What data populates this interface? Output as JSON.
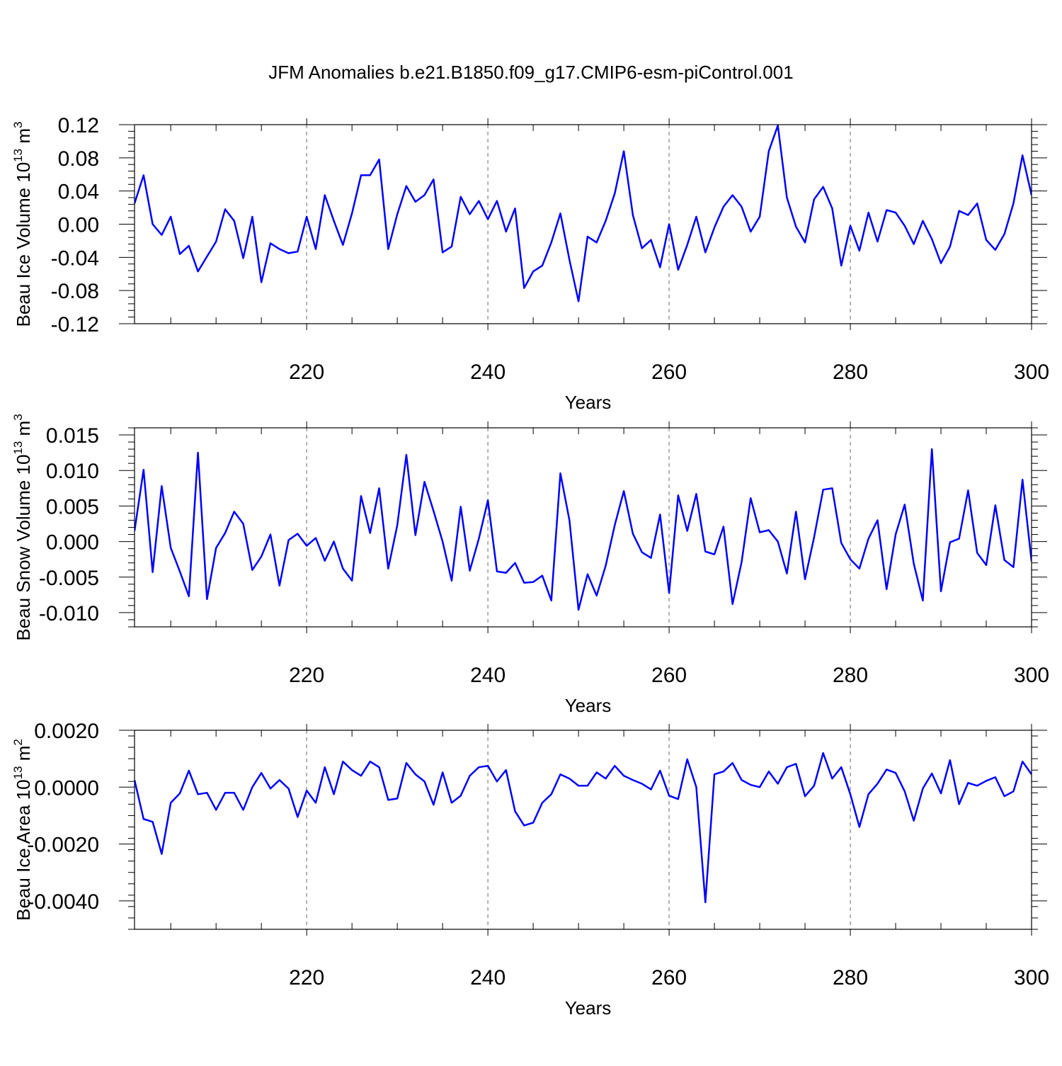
{
  "title": "JFM Anomalies b.e21.B1850.f09_g17.CMIP6-esm-piControl.001",
  "line_color": "#0000ff",
  "chart_data": [
    {
      "type": "line",
      "xlabel": "Years",
      "ylabel": "Beau Ice Volume 10^13 m^3",
      "ylabel_parts": {
        "prefix": "Beau Ice Volume 10",
        "exp1": "13",
        "mid": " m",
        "exp2": "3"
      },
      "xlim": [
        201,
        300
      ],
      "ylim": [
        -0.12,
        0.12
      ],
      "xticks": [
        220,
        240,
        260,
        280,
        300
      ],
      "xtick_labels": [
        "220",
        "240",
        "260",
        "280",
        "300"
      ],
      "yticks": [
        -0.12,
        -0.08,
        -0.04,
        0.0,
        0.04,
        0.08,
        0.12
      ],
      "ytick_labels": [
        "-0.12",
        "-0.08",
        "-0.04",
        "0.00",
        "0.04",
        "0.08",
        "0.12"
      ],
      "grid_x": true,
      "series": [
        {
          "name": "Beau Ice Volume",
          "x_start": 201,
          "values": [
            0.025,
            0.059,
            0.0,
            -0.013,
            0.009,
            -0.036,
            -0.026,
            -0.057,
            -0.039,
            -0.021,
            0.018,
            0.004,
            -0.041,
            0.009,
            -0.07,
            -0.023,
            -0.03,
            -0.035,
            -0.033,
            0.009,
            -0.03,
            0.035,
            0.004,
            -0.025,
            0.013,
            0.059,
            0.059,
            0.078,
            -0.03,
            0.012,
            0.046,
            0.027,
            0.035,
            0.054,
            -0.034,
            -0.027,
            0.033,
            0.012,
            0.028,
            0.006,
            0.028,
            -0.009,
            0.019,
            -0.077,
            -0.057,
            -0.05,
            -0.022,
            0.013,
            -0.043,
            -0.093,
            -0.015,
            -0.022,
            0.004,
            0.037,
            0.088,
            0.011,
            -0.029,
            -0.019,
            -0.052,
            0.0,
            -0.055,
            -0.025,
            0.009,
            -0.034,
            -0.004,
            0.021,
            0.035,
            0.021,
            -0.009,
            0.009,
            0.088,
            0.119,
            0.032,
            -0.003,
            -0.022,
            0.03,
            0.045,
            0.019,
            -0.05,
            -0.002,
            -0.032,
            0.014,
            -0.021,
            0.017,
            0.014,
            -0.002,
            -0.024,
            0.004,
            -0.018,
            -0.047,
            -0.027,
            0.016,
            0.011,
            0.025,
            -0.019,
            -0.031,
            -0.012,
            0.025,
            0.083,
            0.035
          ]
        }
      ]
    },
    {
      "type": "line",
      "xlabel": "Years",
      "ylabel": "Beau Snow Volume 10^13 m^3",
      "ylabel_parts": {
        "prefix": "Beau Snow Volume 10",
        "exp1": "13",
        "mid": " m",
        "exp2": "3"
      },
      "xlim": [
        201,
        300
      ],
      "ylim": [
        -0.012,
        0.016
      ],
      "xticks": [
        220,
        240,
        260,
        280,
        300
      ],
      "xtick_labels": [
        "220",
        "240",
        "260",
        "280",
        "300"
      ],
      "yticks": [
        -0.01,
        -0.005,
        0.0,
        0.005,
        0.01,
        0.015
      ],
      "ytick_labels": [
        "-0.010",
        "-0.005",
        "0.000",
        "0.005",
        "0.010",
        "0.015"
      ],
      "grid_x": true,
      "series": [
        {
          "name": "Beau Snow Volume",
          "x_start": 201,
          "values": [
            0.0015,
            0.0101,
            -0.0043,
            0.0078,
            -0.0009,
            -0.0042,
            -0.0077,
            0.0125,
            -0.0081,
            -0.0009,
            0.0012,
            0.0042,
            0.0025,
            -0.004,
            -0.0021,
            0.001,
            -0.0062,
            0.0002,
            0.0011,
            -0.0006,
            0.0005,
            -0.0027,
            0.0,
            -0.0038,
            -0.0055,
            0.0064,
            0.0012,
            0.0075,
            -0.0038,
            0.0023,
            0.0122,
            0.0009,
            0.0084,
            0.0043,
            0.0,
            -0.0055,
            0.0049,
            -0.0041,
            0.0004,
            0.0058,
            -0.0042,
            -0.0044,
            -0.003,
            -0.0058,
            -0.0057,
            -0.0048,
            -0.0083,
            0.0096,
            0.003,
            -0.0096,
            -0.0046,
            -0.0076,
            -0.0034,
            0.0023,
            0.0071,
            0.0011,
            -0.0015,
            -0.0023,
            0.0038,
            -0.0072,
            0.0065,
            0.0015,
            0.0067,
            -0.0014,
            -0.0018,
            0.0021,
            -0.0088,
            -0.0029,
            0.0061,
            0.0013,
            0.0016,
            0.0,
            -0.0045,
            0.0042,
            -0.0053,
            0.0006,
            0.0073,
            0.0075,
            -0.0002,
            -0.0025,
            -0.0038,
            0.0004,
            0.003,
            -0.0067,
            0.001,
            0.0052,
            -0.0031,
            -0.0083,
            0.013,
            -0.007,
            -0.0001,
            0.0004,
            0.0072,
            -0.0016,
            -0.0033,
            0.0051,
            -0.0026,
            -0.0036,
            0.0087,
            -0.0028
          ]
        }
      ]
    },
    {
      "type": "line",
      "xlabel": "Years",
      "ylabel": "Beau Ice Area 10^13 m^2",
      "ylabel_parts": {
        "prefix": "Beau Ice Area 10",
        "exp1": "13",
        "mid": " m",
        "exp2": "2"
      },
      "xlim": [
        201,
        300
      ],
      "ylim": [
        -0.005,
        0.002
      ],
      "xticks": [
        220,
        240,
        260,
        280,
        300
      ],
      "xtick_labels": [
        "220",
        "240",
        "260",
        "280",
        "300"
      ],
      "yticks": [
        -0.004,
        -0.002,
        0.0,
        0.002
      ],
      "ytick_labels": [
        "-0.0040",
        "-0.0020",
        "0.0000",
        "0.0020"
      ],
      "grid_x": true,
      "series": [
        {
          "name": "Beau Ice Area",
          "x_start": 201,
          "values": [
            0.00025,
            -0.00112,
            -0.00122,
            -0.00235,
            -0.00055,
            -0.00022,
            0.00058,
            -0.00025,
            -0.0002,
            -0.0008,
            -0.0002,
            -0.0002,
            -0.0008,
            0.0,
            0.0005,
            -5e-05,
            0.00025,
            -5e-05,
            -0.00105,
            -0.00012,
            -0.00055,
            0.0007,
            -0.00025,
            0.0009,
            0.0006,
            0.0004,
            0.0009,
            0.0007,
            -0.00045,
            -0.0004,
            0.00085,
            0.00045,
            0.0002,
            -0.00062,
            0.00052,
            -0.00055,
            -0.0003,
            0.0004,
            0.0007,
            0.00075,
            0.0002,
            0.0006,
            -0.00085,
            -0.00135,
            -0.00125,
            -0.00055,
            -0.00025,
            0.00045,
            0.0003,
            5e-05,
            5e-05,
            0.00052,
            0.0003,
            0.00075,
            0.0004,
            0.00025,
            0.00012,
            -8e-05,
            0.00058,
            -0.0003,
            -0.00042,
            0.00098,
            0.0,
            -0.00405,
            0.00045,
            0.00055,
            0.00085,
            0.00025,
            8e-05,
            0.0,
            0.00055,
            0.00012,
            0.0007,
            0.00082,
            -0.00032,
            5e-05,
            0.0012,
            0.0003,
            0.0007,
            -0.00025,
            -0.0014,
            -0.00025,
            0.00012,
            0.00062,
            0.0005,
            -0.00015,
            -0.00118,
            -5e-05,
            0.00048,
            -0.00022,
            0.00095,
            -0.0006,
            0.00015,
            5e-05,
            0.00022,
            0.00035,
            -0.00032,
            -0.00015,
            0.0009,
            0.00045
          ]
        }
      ]
    }
  ]
}
